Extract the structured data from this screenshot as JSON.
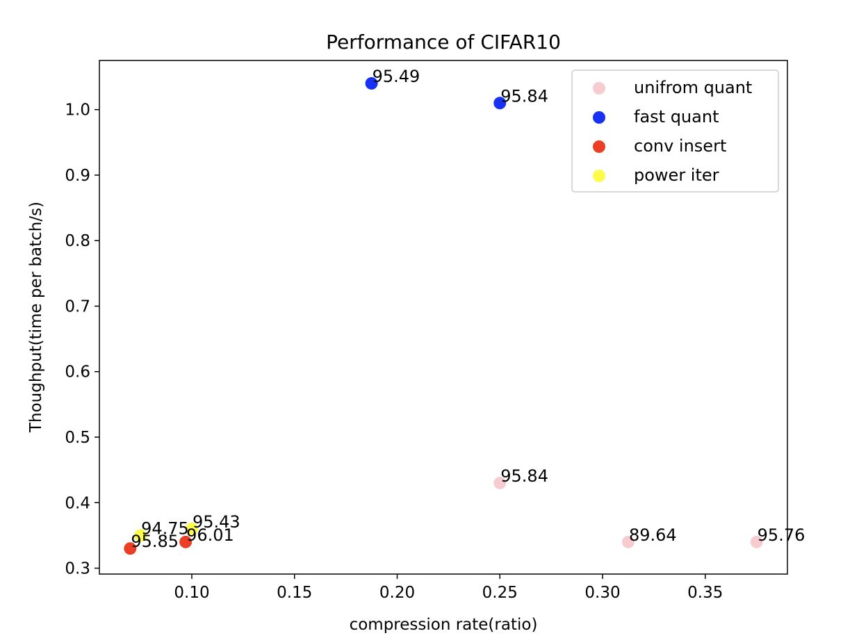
{
  "chart_data": {
    "type": "scatter",
    "title": "Performance of CIFAR10",
    "xlabel": "compression rate(ratio)",
    "ylabel": "Thoughput(time per batch/s)",
    "xlim": [
      0.055,
      0.39
    ],
    "ylim": [
      0.291,
      1.075
    ],
    "xticks": [
      0.1,
      0.15,
      0.2,
      0.25,
      0.3,
      0.35
    ],
    "xtick_labels": [
      "0.10",
      "0.15",
      "0.20",
      "0.25",
      "0.30",
      "0.35"
    ],
    "yticks": [
      0.3,
      0.4,
      0.5,
      0.6,
      0.7,
      0.8,
      0.9,
      1.0
    ],
    "ytick_labels": [
      "0.3",
      "0.4",
      "0.5",
      "0.6",
      "0.7",
      "0.8",
      "0.9",
      "1.0"
    ],
    "grid": false,
    "legend_position": "top-right",
    "series": [
      {
        "name": "unifrom quant",
        "color": "#f7ccd1",
        "points": [
          {
            "x": 0.25,
            "y": 0.43,
            "label": "95.84"
          },
          {
            "x": 0.3125,
            "y": 0.34,
            "label": "89.64"
          },
          {
            "x": 0.375,
            "y": 0.34,
            "label": "95.76"
          }
        ]
      },
      {
        "name": "fast quant",
        "color": "#1732f2",
        "points": [
          {
            "x": 0.1875,
            "y": 1.04,
            "label": "95.49"
          },
          {
            "x": 0.25,
            "y": 1.01,
            "label": "95.84"
          }
        ]
      },
      {
        "name": "conv insert",
        "color": "#ec3e25",
        "points": [
          {
            "x": 0.07,
            "y": 0.33,
            "label": "95.85"
          },
          {
            "x": 0.097,
            "y": 0.34,
            "label": "96.01"
          }
        ]
      },
      {
        "name": "power iter",
        "color": "#fcfb4a",
        "points": [
          {
            "x": 0.075,
            "y": 0.35,
            "label": "94.75"
          },
          {
            "x": 0.1,
            "y": 0.36,
            "label": "95.43"
          }
        ]
      }
    ]
  }
}
